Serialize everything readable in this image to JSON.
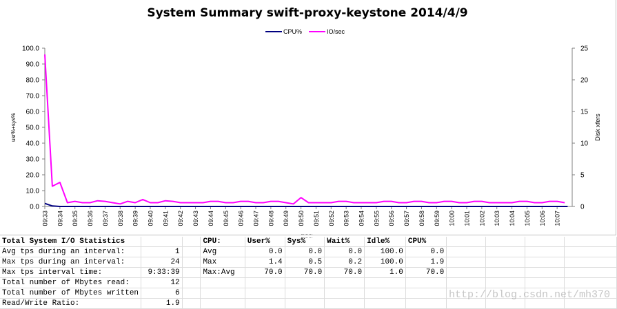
{
  "chart_data": {
    "type": "line",
    "title": "System Summary swift-proxy-keystone  2014/4/9",
    "ylabel_left": "usr%+sys%",
    "ylabel_right": "Disk xfers",
    "ylim_left": [
      0,
      100
    ],
    "ylim_right": [
      0,
      25
    ],
    "yticks_left": [
      "0.0",
      "10.0",
      "20.0",
      "30.0",
      "40.0",
      "50.0",
      "60.0",
      "70.0",
      "80.0",
      "90.0",
      "100.0"
    ],
    "yticks_right": [
      "0",
      "5",
      "10",
      "15",
      "20",
      "25"
    ],
    "legend_position": "top",
    "categories": [
      "09:33",
      "09:34",
      "09:35",
      "09:36",
      "09:37",
      "09:38",
      "09:39",
      "09:40",
      "09:41",
      "09:42",
      "09:43",
      "09:44",
      "09:45",
      "09:46",
      "09:47",
      "09:48",
      "09:49",
      "09:50",
      "09:51",
      "09:52",
      "09:53",
      "09:54",
      "09:55",
      "09:56",
      "09:57",
      "09:58",
      "09:59",
      "10:00",
      "10:01",
      "10:02",
      "10:03",
      "10:04",
      "10:05",
      "10:06",
      "10:07"
    ],
    "series": [
      {
        "name": "CPU%",
        "axis": "left",
        "color": "#000080",
        "points": [
          [
            0,
            1.9
          ],
          [
            0.5,
            0.3
          ],
          [
            1,
            0
          ],
          [
            34.7,
            0
          ]
        ]
      },
      {
        "name": "IO/sec",
        "axis": "right",
        "color": "#ff00ff",
        "points": [
          [
            0,
            24
          ],
          [
            0.5,
            3.2
          ],
          [
            1,
            3.8
          ],
          [
            1.5,
            0.6
          ],
          [
            2,
            0.8
          ],
          [
            2.5,
            0.6
          ],
          [
            3,
            0.6
          ],
          [
            3.5,
            0.9
          ],
          [
            4,
            0.8
          ],
          [
            4.5,
            0.6
          ],
          [
            5,
            0.4
          ],
          [
            5.5,
            0.8
          ],
          [
            6,
            0.6
          ],
          [
            6.5,
            1.1
          ],
          [
            7,
            0.6
          ],
          [
            7.5,
            0.6
          ],
          [
            8,
            0.9
          ],
          [
            8.5,
            0.8
          ],
          [
            9,
            0.6
          ],
          [
            9.5,
            0.6
          ],
          [
            10,
            0.6
          ],
          [
            10.5,
            0.6
          ],
          [
            11,
            0.8
          ],
          [
            11.5,
            0.8
          ],
          [
            12,
            0.6
          ],
          [
            12.5,
            0.6
          ],
          [
            13,
            0.8
          ],
          [
            13.5,
            0.8
          ],
          [
            14,
            0.6
          ],
          [
            14.5,
            0.6
          ],
          [
            15,
            0.8
          ],
          [
            15.5,
            0.8
          ],
          [
            16,
            0.6
          ],
          [
            16.5,
            0.4
          ],
          [
            17,
            1.4
          ],
          [
            17.5,
            0.6
          ],
          [
            18,
            0.6
          ],
          [
            18.5,
            0.6
          ],
          [
            19,
            0.6
          ],
          [
            19.5,
            0.8
          ],
          [
            20,
            0.8
          ],
          [
            20.5,
            0.6
          ],
          [
            21,
            0.6
          ],
          [
            21.5,
            0.6
          ],
          [
            22,
            0.6
          ],
          [
            22.5,
            0.8
          ],
          [
            23,
            0.8
          ],
          [
            23.5,
            0.6
          ],
          [
            24,
            0.6
          ],
          [
            24.5,
            0.8
          ],
          [
            25,
            0.8
          ],
          [
            25.5,
            0.6
          ],
          [
            26,
            0.6
          ],
          [
            26.5,
            0.8
          ],
          [
            27,
            0.8
          ],
          [
            27.5,
            0.6
          ],
          [
            28,
            0.6
          ],
          [
            28.5,
            0.8
          ],
          [
            29,
            0.8
          ],
          [
            29.5,
            0.6
          ],
          [
            30,
            0.6
          ],
          [
            30.5,
            0.6
          ],
          [
            31,
            0.6
          ],
          [
            31.5,
            0.8
          ],
          [
            32,
            0.8
          ],
          [
            32.5,
            0.6
          ],
          [
            33,
            0.6
          ],
          [
            33.5,
            0.8
          ],
          [
            34,
            0.8
          ],
          [
            34.5,
            0.6
          ]
        ]
      }
    ]
  },
  "stats": {
    "title": "Total System I/O Statistics",
    "rows": [
      {
        "label": "Avg tps during an interval:",
        "value": "1"
      },
      {
        "label": "Max tps during an interval:",
        "value": "24"
      },
      {
        "label": "Max tps interval time:",
        "value": "9:33:39"
      },
      {
        "label": "Total number of Mbytes read:",
        "value": "12"
      },
      {
        "label": "Total number of Mbytes written",
        "value": "6"
      },
      {
        "label": "Read/Write Ratio:",
        "value": "1.9"
      }
    ]
  },
  "cpu_table": {
    "headers": [
      "CPU:",
      "User%",
      "Sys%",
      "Wait%",
      "Idle%",
      "CPU%"
    ],
    "rows": [
      [
        "Avg",
        "0.0",
        "0.0",
        "0.0",
        "100.0",
        "0.0"
      ],
      [
        "Max",
        "1.4",
        "0.5",
        "0.2",
        "100.0",
        "1.9"
      ],
      [
        "Max:Avg",
        "70.0",
        "70.0",
        "70.0",
        "1.0",
        "70.0"
      ]
    ]
  },
  "watermark": "http://blog.csdn.net/mh370"
}
